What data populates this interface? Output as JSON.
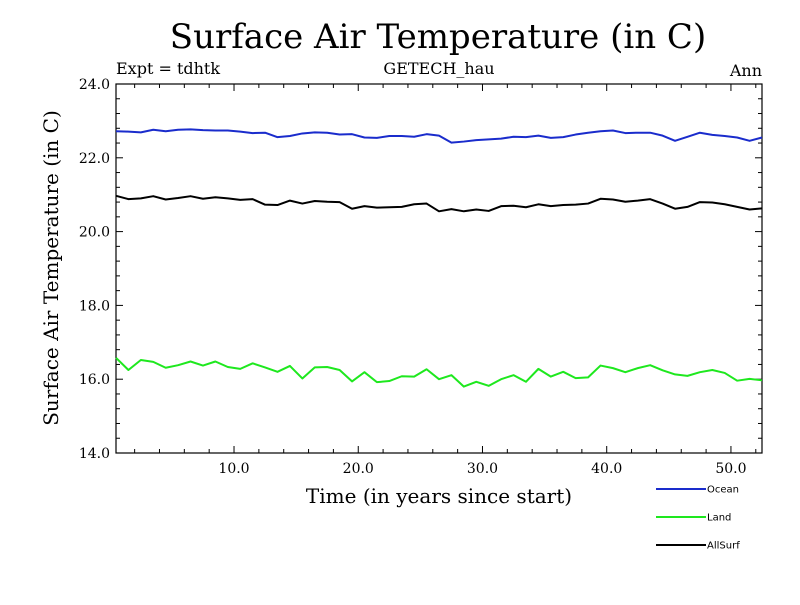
{
  "chart_data": {
    "type": "line",
    "title": "Surface Air Temperature (in C)",
    "subtitle_left": "Expt = tdhtk",
    "subtitle_center": "GETECH_hau",
    "subtitle_right": "Ann",
    "xlabel": "Time (in years since start)",
    "ylabel": "Surface Air Temperature (in C)",
    "xlim": [
      0.5,
      52.5
    ],
    "ylim": [
      14.0,
      24.0
    ],
    "xticks": [
      10.0,
      20.0,
      30.0,
      40.0,
      50.0
    ],
    "xtick_labels": [
      "10.0",
      "20.0",
      "30.0",
      "40.0",
      "50.0"
    ],
    "yticks": [
      14.0,
      16.0,
      18.0,
      20.0,
      22.0,
      24.0
    ],
    "ytick_labels": [
      "14.0",
      "16.0",
      "18.0",
      "20.0",
      "22.0",
      "24.0"
    ],
    "x": [
      0.5,
      1.5,
      2.5,
      3.5,
      4.5,
      5.5,
      6.5,
      7.5,
      8.5,
      9.5,
      10.5,
      11.5,
      12.5,
      13.5,
      14.5,
      15.5,
      16.5,
      17.5,
      18.5,
      19.5,
      20.5,
      21.5,
      22.5,
      23.5,
      24.5,
      25.5,
      26.5,
      27.5,
      28.5,
      29.5,
      30.5,
      31.5,
      32.5,
      33.5,
      34.5,
      35.5,
      36.5,
      37.5,
      38.5,
      39.5,
      40.5,
      41.5,
      42.5,
      43.5,
      44.5,
      45.5,
      46.5,
      47.5,
      48.5,
      49.5,
      50.5,
      51.5,
      52.5
    ],
    "series": [
      {
        "name": "Ocean",
        "color": "#1a2ccc",
        "values": [
          22.72,
          22.71,
          22.69,
          22.76,
          22.72,
          22.76,
          22.77,
          22.75,
          22.74,
          22.74,
          22.71,
          22.67,
          22.68,
          22.56,
          22.59,
          22.66,
          22.69,
          22.68,
          22.63,
          22.64,
          22.55,
          22.54,
          22.59,
          22.59,
          22.57,
          22.64,
          22.6,
          22.41,
          22.44,
          22.48,
          22.5,
          22.52,
          22.57,
          22.56,
          22.6,
          22.54,
          22.56,
          22.63,
          22.68,
          22.72,
          22.74,
          22.67,
          22.68,
          22.68,
          22.6,
          22.46,
          22.57,
          22.68,
          22.62,
          22.59,
          22.55,
          22.46,
          22.55
        ]
      },
      {
        "name": "Land",
        "color": "#1ee81e",
        "values": [
          16.58,
          16.25,
          16.52,
          16.47,
          16.31,
          16.38,
          16.48,
          16.37,
          16.48,
          16.33,
          16.28,
          16.43,
          16.32,
          16.2,
          16.36,
          16.02,
          16.32,
          16.33,
          16.25,
          15.94,
          16.19,
          15.92,
          15.95,
          16.08,
          16.07,
          16.27,
          16.0,
          16.11,
          15.8,
          15.93,
          15.82,
          16.0,
          16.11,
          15.93,
          16.28,
          16.07,
          16.2,
          16.03,
          16.05,
          16.37,
          16.3,
          16.19,
          16.3,
          16.38,
          16.24,
          16.13,
          16.09,
          16.19,
          16.25,
          16.17,
          15.96,
          16.01,
          15.97
        ]
      },
      {
        "name": "AllSurf",
        "color": "#000000",
        "values": [
          20.97,
          20.88,
          20.9,
          20.96,
          20.87,
          20.91,
          20.96,
          20.89,
          20.93,
          20.9,
          20.86,
          20.88,
          20.73,
          20.72,
          20.84,
          20.76,
          20.83,
          20.81,
          20.8,
          20.62,
          20.69,
          20.65,
          20.66,
          20.67,
          20.74,
          20.76,
          20.55,
          20.61,
          20.55,
          20.6,
          20.56,
          20.69,
          20.7,
          20.66,
          20.74,
          20.69,
          20.72,
          20.73,
          20.76,
          20.89,
          20.87,
          20.81,
          20.84,
          20.88,
          20.76,
          20.62,
          20.67,
          20.8,
          20.79,
          20.74,
          20.67,
          20.6,
          20.63
        ]
      }
    ],
    "legend": {
      "placement": "bottom-right",
      "entries": [
        "Ocean",
        "Land",
        "AllSurf"
      ]
    }
  }
}
